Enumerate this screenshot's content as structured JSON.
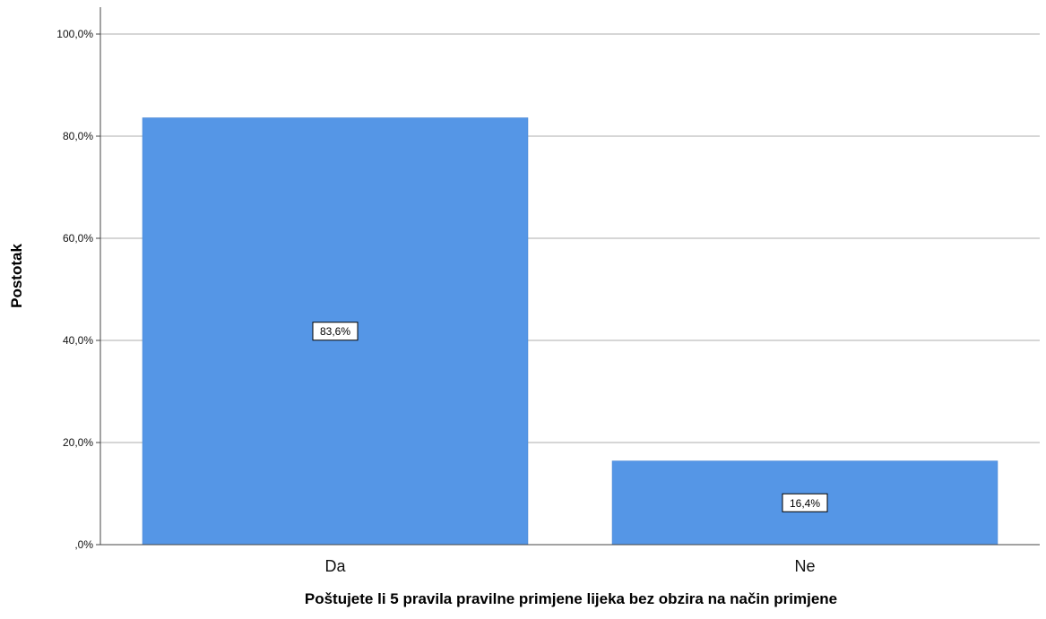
{
  "chart_data": {
    "type": "bar",
    "categories": [
      "Da",
      "Ne"
    ],
    "values": [
      83.6,
      16.4
    ],
    "data_labels": [
      "83,6%",
      "16,4%"
    ],
    "ylabel": "Postotak",
    "xlabel": "Poštujete li 5 pravila pravilne primjene lijeka bez obzira na način primjene",
    "ylim": [
      0,
      100
    ],
    "yticks": [
      0,
      20,
      40,
      60,
      80,
      100
    ],
    "ytick_labels": [
      ",0%",
      "20,0%",
      "40,0%",
      "60,0%",
      "80,0%",
      "100,0%"
    ],
    "grid": true,
    "legend": false,
    "colors": {
      "bar": "#5596e6",
      "grid": "#c8c8c8",
      "axis": "#444444"
    }
  }
}
